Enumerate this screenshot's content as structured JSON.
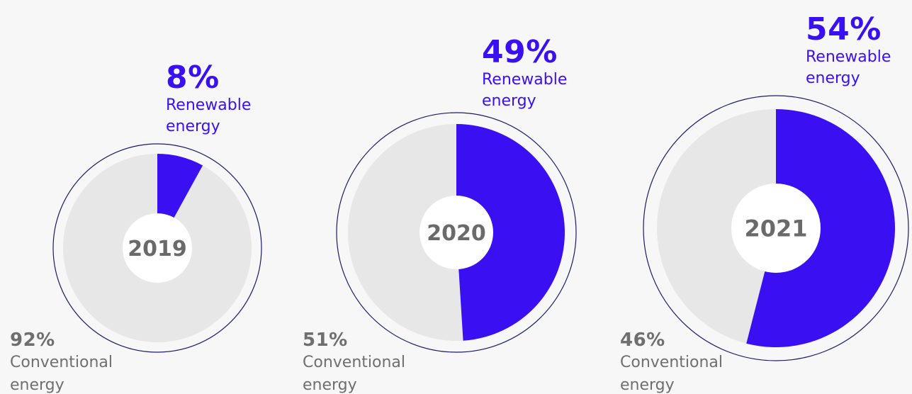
{
  "chart_data": [
    {
      "type": "pie",
      "title": "2019",
      "slices": [
        {
          "label": "Renewable energy",
          "percent_label": "8%",
          "value": 8
        },
        {
          "label": "Conventional energy",
          "percent_label": "92%",
          "value": 92
        }
      ]
    },
    {
      "type": "pie",
      "title": "2020",
      "slices": [
        {
          "label": "Renewable energy",
          "percent_label": "49%",
          "value": 49
        },
        {
          "label": "Conventional energy",
          "percent_label": "51%",
          "value": 51
        }
      ]
    },
    {
      "type": "pie",
      "title": "2021",
      "slices": [
        {
          "label": "Renewable energy",
          "percent_label": "54%",
          "value": 54
        },
        {
          "label": "Conventional energy",
          "percent_label": "46%",
          "value": 46
        }
      ]
    }
  ],
  "captions": {
    "renewable": [
      "Renewable",
      "energy"
    ],
    "conventional": [
      "Conventional",
      "energy"
    ]
  },
  "colors": {
    "renewable": "#3a10f2",
    "conventional": "#e7e7e7",
    "outline": "#1a1a6e",
    "center": "#ffffff",
    "year_text": "#6a6a6a"
  }
}
